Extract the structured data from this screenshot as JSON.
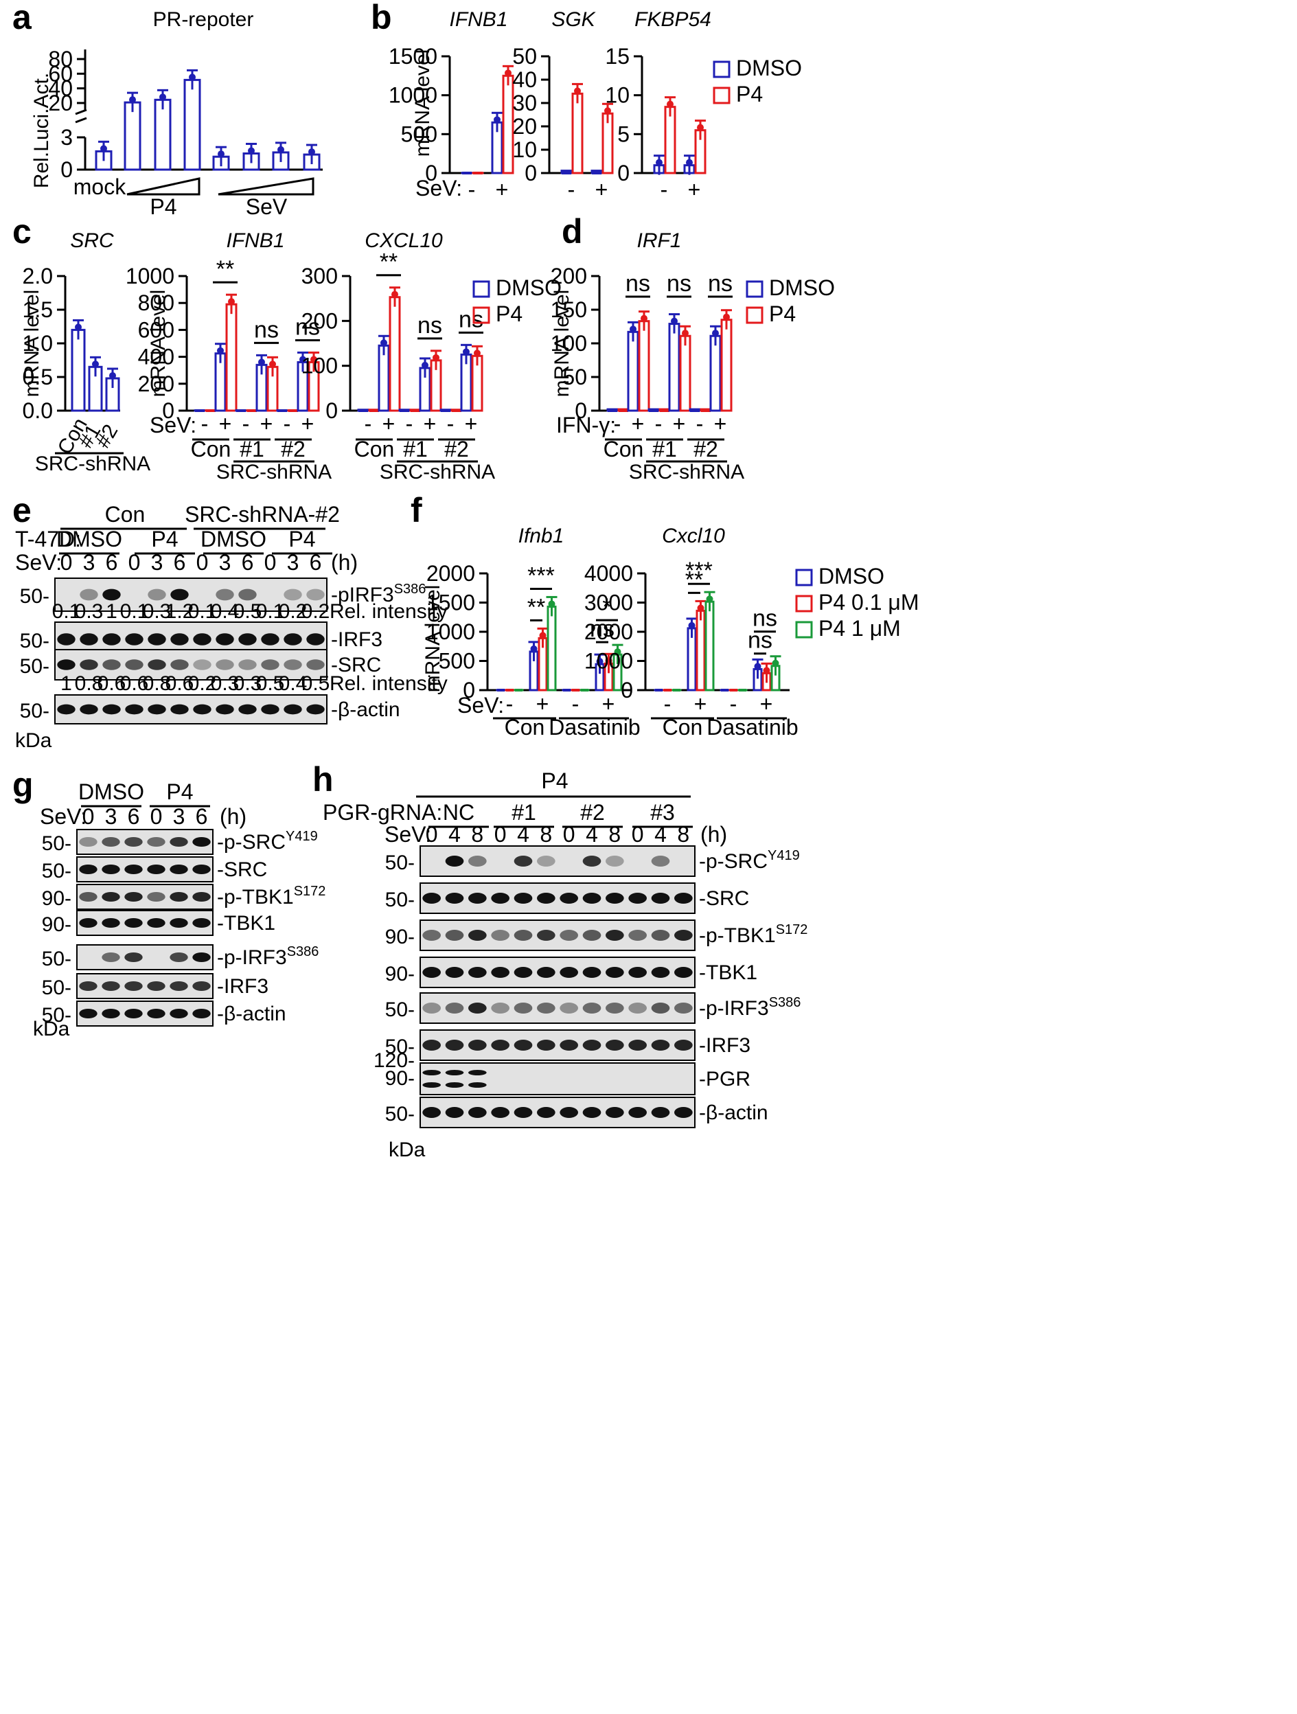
{
  "colors": {
    "dmso": "#1f1fb4",
    "p4": "#e31a1c",
    "p4_high": "#1a9a3a",
    "band": "#111111",
    "blot_bg": "#e2e2e2"
  },
  "panels": {
    "a": {
      "label": "a",
      "title": "PR-repoter",
      "ylabel": "Rel.Luci.Act.",
      "ticks_low": [
        "0",
        "3"
      ],
      "ticks_high": [
        "20",
        "40",
        "60",
        "80"
      ],
      "x_mock": "mock",
      "x_p4": "P4",
      "x_sev": "SeV",
      "values": [
        1.7,
        4.8,
        12.9,
        51.5,
        1.2,
        1.5,
        1.6,
        1.4
      ]
    },
    "b": {
      "label": "b",
      "sev_label": "SeV:",
      "minus": "-",
      "plus": "+",
      "ylabel": "mRNA level",
      "legend": [
        "DMSO",
        "P4"
      ],
      "charts": [
        {
          "title": "IFNB1",
          "ticks": [
            "0",
            "500",
            "1000",
            "1500"
          ],
          "ymax": 1500,
          "dmso": [
            2,
            650
          ],
          "p4": [
            2,
            1250
          ]
        },
        {
          "title": "SGK",
          "ticks": [
            "0",
            "10",
            "20",
            "30",
            "40",
            "50"
          ],
          "ymax": 50,
          "dmso": [
            1,
            1
          ],
          "p4": [
            34,
            25.5
          ]
        },
        {
          "title": "FKBP54",
          "ticks": [
            "0",
            "5",
            "10",
            "15"
          ],
          "ymax": 15,
          "dmso": [
            1,
            1
          ],
          "p4": [
            8.5,
            5.5
          ]
        }
      ]
    },
    "c": {
      "label": "c",
      "ylabel": "mRNA level",
      "sev_label": "SeV:",
      "minus": "-",
      "plus": "+",
      "legend": [
        "DMSO",
        "P4"
      ],
      "groups": [
        "Con",
        "#1",
        "#2"
      ],
      "shrna_label": "SRC-shRNA",
      "src": {
        "title": "SRC",
        "ticks": [
          "0.0",
          "0.5",
          "1.0",
          "1.5",
          "2.0"
        ],
        "ymax": 2.0,
        "values": [
          1.2,
          0.65,
          0.48
        ]
      },
      "ifnb1": {
        "title": "IFNB1",
        "ticks": [
          "0",
          "200",
          "400",
          "600",
          "800",
          "1000"
        ],
        "ymax": 1000,
        "dmso": [
          2,
          425,
          2,
          340,
          2,
          360
        ],
        "p4": [
          2,
          790,
          2,
          325,
          2,
          360
        ],
        "sig": [
          "**",
          "ns",
          "ns"
        ]
      },
      "cxcl10": {
        "title": "CXCL10",
        "ticks": [
          "0",
          "100",
          "200",
          "300"
        ],
        "ymax": 300,
        "dmso": [
          2,
          145,
          2,
          95,
          2,
          125
        ],
        "p4": [
          2,
          253,
          2,
          112,
          2,
          122
        ],
        "sig": [
          "**",
          "ns",
          "ns"
        ]
      }
    },
    "d": {
      "label": "d",
      "title": "IRF1",
      "ylabel": "mRNA level",
      "treat_label": "IFN-γ:",
      "minus": "-",
      "plus": "+",
      "legend": [
        "DMSO",
        "P4"
      ],
      "groups": [
        "Con",
        "#1",
        "#2"
      ],
      "shrna_label": "SRC-shRNA",
      "ticks": [
        "0",
        "50",
        "100",
        "150",
        "200"
      ],
      "ymax": 200,
      "dmso": [
        2,
        117,
        2,
        129,
        2,
        111
      ],
      "p4": [
        2,
        133,
        2,
        111,
        2,
        135
      ],
      "sig": [
        "ns",
        "ns",
        "ns"
      ]
    },
    "e": {
      "label": "e",
      "cell": "T-47D:",
      "groups": [
        "Con",
        "SRC-shRNA-#2"
      ],
      "treatments": [
        "DMSO",
        "P4",
        "DMSO",
        "P4"
      ],
      "sev_label": "SeV:",
      "times": [
        "0",
        "3",
        "6",
        "0",
        "3",
        "6",
        "0",
        "3",
        "6",
        "0",
        "3",
        "6"
      ],
      "unit": "(h)",
      "kda": "kDa",
      "mw": "50-",
      "blots": [
        {
          "name": "pIRF3",
          "sup": "S386",
          "intens": [
            0,
            0.3,
            1,
            0,
            0.3,
            1.2,
            0,
            0.4,
            0.5,
            0,
            0.2,
            0.2
          ]
        },
        {
          "name": "IRF3",
          "sup": "",
          "intens": [
            1,
            1,
            1,
            1,
            1,
            1,
            1,
            1,
            1,
            1,
            1,
            1
          ]
        },
        {
          "name": "SRC",
          "sup": "",
          "intens": [
            1,
            0.8,
            0.6,
            0.6,
            0.8,
            0.6,
            0.2,
            0.3,
            0.3,
            0.5,
            0.4,
            0.5
          ]
        },
        {
          "name": "β-actin",
          "sup": "",
          "intens": [
            1,
            1,
            1,
            1,
            1,
            1,
            1,
            1,
            1,
            1,
            1,
            1
          ]
        }
      ],
      "rel1": [
        "0.1",
        "0.3",
        "1",
        "0.1",
        "0.3",
        "1.2",
        "0.1",
        "0.4",
        "0.5",
        "0.1",
        "0.2",
        "0.2"
      ],
      "rel2": [
        "1",
        "0.8",
        "0.6",
        "0.6",
        "0.8",
        "0.6",
        "0.2",
        "0.3",
        "0.3",
        "0.5",
        "0.4",
        "0.5"
      ],
      "rel_label": "Rel. intensity"
    },
    "f": {
      "label": "f",
      "ylabel": "mRNA level",
      "sev_label": "SeV:",
      "minus": "-",
      "plus": "+",
      "groups": [
        "Con",
        "Dasatinib"
      ],
      "legend": [
        "DMSO",
        "P4 0.1 μM",
        "P4 1 μM"
      ],
      "ifnb1": {
        "title": "Ifnb1",
        "ticks": [
          "0",
          "500",
          "1000",
          "1500",
          "2000"
        ],
        "ymax": 2000,
        "dmso": [
          2,
          660,
          2,
          445
        ],
        "p4_01": [
          2,
          890,
          2,
          455
        ],
        "p4_1": [
          2,
          1430,
          2,
          610
        ],
        "sig": [
          "**",
          "***",
          "ns",
          "*"
        ]
      },
      "cxcl10": {
        "title": "Cxcl10",
        "ticks": [
          "0",
          "1000",
          "2000",
          "3000",
          "4000"
        ],
        "ymax": 4000,
        "dmso": [
          2,
          2120,
          2,
          720
        ],
        "p4_01": [
          2,
          2720,
          2,
          580
        ],
        "p4_1": [
          2,
          3030,
          2,
          830
        ],
        "sig": [
          "**",
          "***",
          "ns",
          "ns"
        ]
      }
    },
    "g": {
      "label": "g",
      "groups": [
        "DMSO",
        "P4"
      ],
      "sev_label": "SeV:",
      "times": [
        "0",
        "3",
        "6",
        "0",
        "3",
        "6"
      ],
      "unit": "(h)",
      "kda": "kDa",
      "blots": [
        {
          "name": "p-SRC",
          "sup": "Y419",
          "mw": "50-",
          "intens": [
            0.3,
            0.6,
            0.7,
            0.5,
            0.8,
            1
          ]
        },
        {
          "name": "SRC",
          "sup": "",
          "mw": "50-",
          "intens": [
            1,
            1,
            1,
            1,
            1,
            1
          ]
        },
        {
          "name": "p-TBK1",
          "sup": "S172",
          "mw": "90-",
          "intens": [
            0.6,
            0.9,
            0.9,
            0.5,
            0.9,
            0.9
          ]
        },
        {
          "name": "TBK1",
          "sup": "",
          "mw": "90-",
          "intens": [
            1,
            1,
            1,
            1,
            1,
            1
          ]
        },
        {
          "name": "p-IRF3",
          "sup": "S386",
          "mw": "50-",
          "intens": [
            0,
            0.5,
            0.8,
            0,
            0.7,
            1
          ]
        },
        {
          "name": "IRF3",
          "sup": "",
          "mw": "50-",
          "intens": [
            0.8,
            0.8,
            0.8,
            0.8,
            0.8,
            0.8
          ]
        },
        {
          "name": "β-actin",
          "sup": "",
          "mw": "50-",
          "intens": [
            1,
            1,
            1,
            1,
            1,
            1
          ]
        }
      ]
    },
    "h": {
      "label": "h",
      "top": "P4",
      "grna_label": "PGR-gRNA:",
      "groups": [
        "NC",
        "#1",
        "#2",
        "#3"
      ],
      "sev_label": "SeV:",
      "times": [
        "0",
        "4",
        "8",
        "0",
        "4",
        "8",
        "0",
        "4",
        "8",
        "0",
        "4",
        "8"
      ],
      "unit": "(h)",
      "kda": "kDa",
      "blots": [
        {
          "name": "p-SRC",
          "sup": "Y419",
          "mw": [
            "50-"
          ],
          "intens": [
            0,
            1,
            0.4,
            0,
            0.8,
            0.2,
            0,
            0.8,
            0.2,
            0,
            0.4,
            0
          ]
        },
        {
          "name": "SRC",
          "sup": "",
          "mw": [
            "50-"
          ],
          "intens": [
            1,
            1,
            1,
            1,
            1,
            1,
            1,
            1,
            1,
            1,
            1,
            1
          ]
        },
        {
          "name": "p-TBK1",
          "sup": "S172",
          "mw": [
            "90-"
          ],
          "intens": [
            0.5,
            0.6,
            0.9,
            0.4,
            0.6,
            0.8,
            0.5,
            0.6,
            0.9,
            0.5,
            0.6,
            0.9
          ]
        },
        {
          "name": "TBK1",
          "sup": "",
          "mw": [
            "90-"
          ],
          "intens": [
            1,
            1,
            1,
            1,
            1,
            1,
            1,
            1,
            1,
            1,
            1,
            1
          ]
        },
        {
          "name": "p-IRF3",
          "sup": "S386",
          "mw": [
            "50-"
          ],
          "intens": [
            0.3,
            0.5,
            0.9,
            0.3,
            0.5,
            0.5,
            0.3,
            0.5,
            0.5,
            0.3,
            0.6,
            0.5
          ]
        },
        {
          "name": "IRF3",
          "sup": "",
          "mw": [
            "50-"
          ],
          "intens": [
            0.9,
            0.9,
            0.9,
            0.9,
            0.9,
            0.9,
            0.9,
            0.9,
            0.9,
            0.9,
            0.9,
            0.9
          ]
        },
        {
          "name": "PGR",
          "sup": "",
          "mw": [
            "120-",
            "90-"
          ],
          "intens": [
            1,
            1,
            1,
            0,
            0,
            0,
            0,
            0,
            0,
            0,
            0,
            0
          ]
        },
        {
          "name": "β-actin",
          "sup": "",
          "mw": [
            "50-"
          ],
          "intens": [
            1,
            1,
            1,
            1,
            1,
            1,
            1,
            1,
            1,
            1,
            1,
            1
          ]
        }
      ]
    }
  }
}
